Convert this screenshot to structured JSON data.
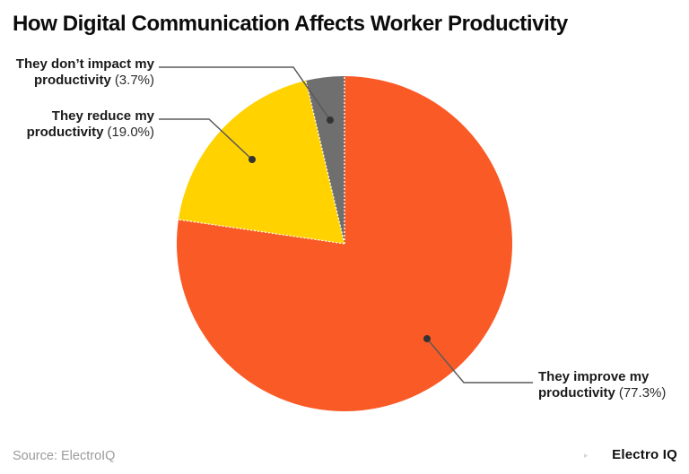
{
  "title": "How Digital Communication Affects Worker Productivity",
  "labels": {
    "no_impact": {
      "line1": "They don’t impact my",
      "line2": "productivity",
      "pct": "(3.7%)"
    },
    "reduce": {
      "line1": "They reduce my",
      "line2": "productivity",
      "pct": "(19.0%)"
    },
    "improve": {
      "line1": "They improve my",
      "line2": "productivity",
      "pct": "(77.3%)"
    }
  },
  "footer": {
    "source": "Source: ElectroIQ",
    "brand": "Electro IQ",
    "brand_mark": "▸"
  },
  "chart_data": {
    "type": "pie",
    "title": "How Digital Communication Affects Worker Productivity",
    "categories": [
      "They improve my productivity",
      "They reduce my productivity",
      "They don’t impact my productivity"
    ],
    "values": [
      77.3,
      19.0,
      3.7
    ],
    "unit": "%",
    "colors": [
      "#FA5A26",
      "#FFD200",
      "#6F6F6F"
    ],
    "start_angle": "12 o'clock",
    "direction": "clockwise",
    "legend_position": "none (leader-line callout labels)",
    "separator_style": "white dashed radial lines",
    "source": "ElectroIQ"
  }
}
